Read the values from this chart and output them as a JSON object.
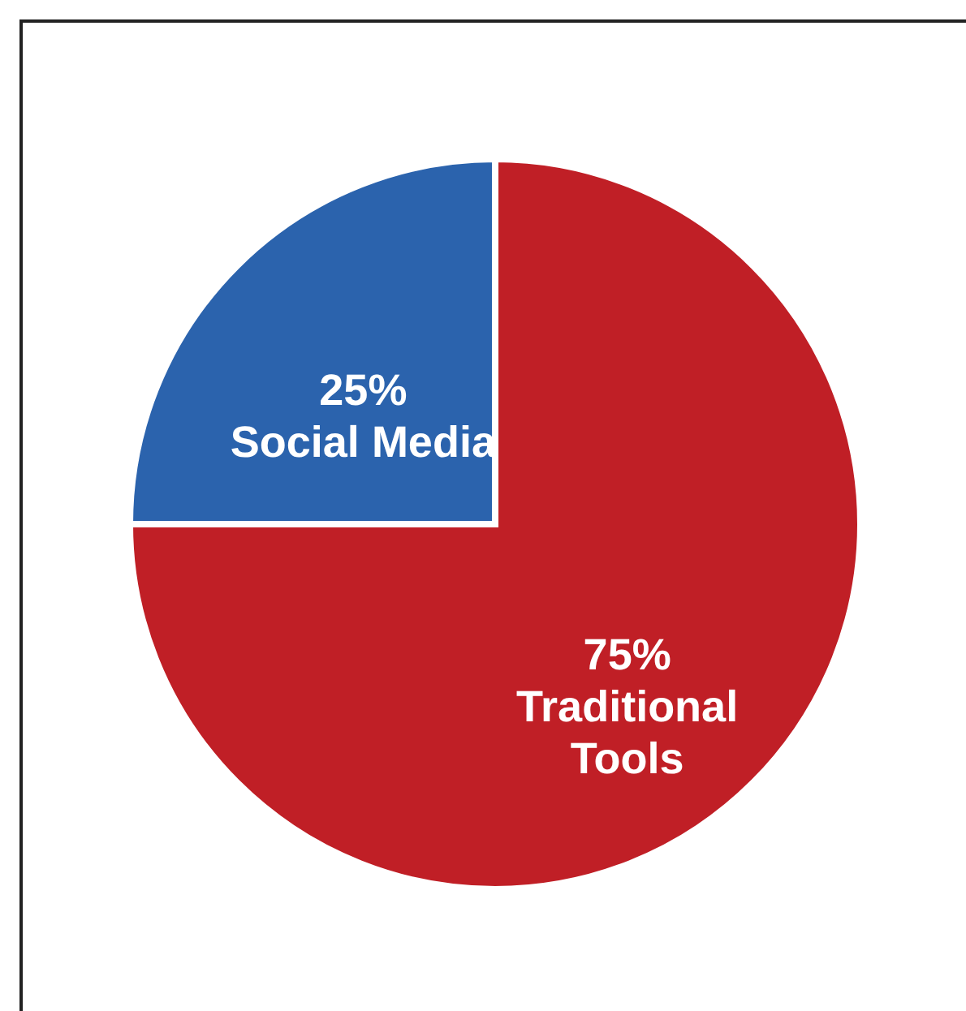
{
  "chart_data": {
    "type": "pie",
    "categories": [
      "Traditional Tools",
      "Social Media"
    ],
    "values": [
      75,
      25
    ],
    "colors": [
      "#c01f26",
      "#2b63ad"
    ],
    "value_labels": [
      "75%",
      "25%"
    ]
  }
}
